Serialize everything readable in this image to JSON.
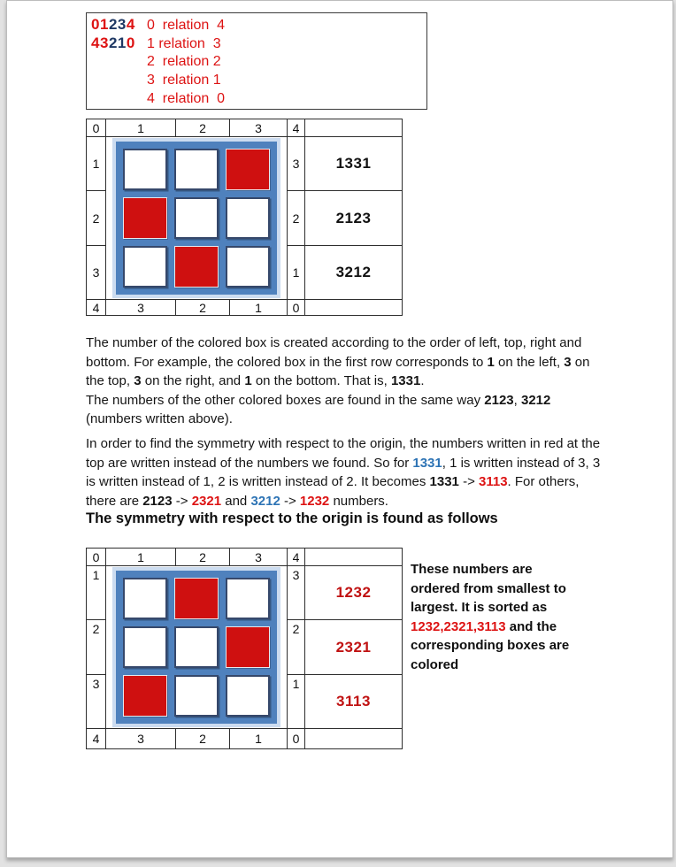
{
  "colors": {
    "red_text": "#dd1313",
    "blue_digit": "#1f3864",
    "frame_blue": "#4f81bd",
    "glow_blue": "#ccdcf0",
    "cell_border": "#36486b",
    "red_fill": "#cf1010",
    "value_red": "#c01212",
    "link_blue": "#2e74b5"
  },
  "relation_box": {
    "rows": [
      {
        "seq": [
          [
            "0",
            "r"
          ],
          [
            "1",
            "r"
          ],
          [
            "2",
            "b"
          ],
          [
            "3",
            "b"
          ],
          [
            "4",
            "r"
          ]
        ],
        "text": "0  relation  4"
      },
      {
        "seq": [
          [
            "4",
            "r"
          ],
          [
            "3",
            "r"
          ],
          [
            "2",
            "b"
          ],
          [
            "1",
            "b"
          ],
          [
            "0",
            "r"
          ]
        ],
        "text": "1 relation  3"
      },
      {
        "seq": null,
        "text": "2  relation 2"
      },
      {
        "seq": null,
        "text": "3  relation 1"
      },
      {
        "seq": null,
        "text": "4  relation  0"
      }
    ]
  },
  "table1": {
    "header": [
      "0",
      "1",
      "2",
      "3",
      "4",
      ""
    ],
    "footer": [
      "4",
      "3",
      "2",
      "1",
      "0",
      ""
    ],
    "rows": [
      {
        "left": "1",
        "right": "3",
        "value": "1331"
      },
      {
        "left": "2",
        "right": "2",
        "value": "2123"
      },
      {
        "left": "3",
        "right": "1",
        "value": "3212"
      }
    ],
    "grid_red": [
      [
        0,
        2
      ],
      [
        1,
        0
      ],
      [
        2,
        1
      ]
    ]
  },
  "table2": {
    "header": [
      "0",
      "1",
      "2",
      "3",
      "4",
      ""
    ],
    "footer": [
      "4",
      "3",
      "2",
      "1",
      "0",
      ""
    ],
    "rows": [
      {
        "left": "1",
        "right": "3",
        "value": "1232"
      },
      {
        "left": "2",
        "right": "2",
        "value": "2321"
      },
      {
        "left": "3",
        "right": "1",
        "value": "3113"
      }
    ],
    "grid_red": [
      [
        0,
        1
      ],
      [
        1,
        2
      ],
      [
        2,
        0
      ]
    ]
  },
  "paragraph1": [
    {
      "t": "The number of the colored box is created according to the order of left, top, right and bottom. For example, the colored box in the first row corresponds to ",
      "s": "n"
    },
    {
      "t": "1",
      "s": "b"
    },
    {
      "t": " on the left, ",
      "s": "n"
    },
    {
      "t": "3",
      "s": "b"
    },
    {
      "t": " on the top, ",
      "s": "n"
    },
    {
      "t": "3",
      "s": "b"
    },
    {
      "t": " on the right, and ",
      "s": "n"
    },
    {
      "t": "1",
      "s": "b"
    },
    {
      "t": " on the bottom. That is, ",
      "s": "n"
    },
    {
      "t": "1331",
      "s": "b"
    },
    {
      "t": ".\n",
      "s": "n"
    },
    {
      "t": "The numbers of the other colored boxes are found in the same way ",
      "s": "n"
    },
    {
      "t": "2123",
      "s": "b"
    },
    {
      "t": ", ",
      "s": "n"
    },
    {
      "t": "3212",
      "s": "b"
    },
    {
      "t": " (numbers written above).",
      "s": "n"
    }
  ],
  "paragraph2": [
    {
      "t": "In order to find the symmetry with respect to the origin, the numbers written in red at the top are written instead of the numbers we found. So for ",
      "s": "n"
    },
    {
      "t": "1331",
      "s": "blb"
    },
    {
      "t": ", 1 is written instead of 3, 3 is written instead of 1, 2 is written instead of 2. It becomes ",
      "s": "n"
    },
    {
      "t": "1331",
      "s": "b"
    },
    {
      "t": " -> ",
      "s": "n"
    },
    {
      "t": "3113",
      "s": "rb"
    },
    {
      "t": ". For others, there are ",
      "s": "n"
    },
    {
      "t": "2123",
      "s": "b"
    },
    {
      "t": " -> ",
      "s": "n"
    },
    {
      "t": "2321",
      "s": "rb"
    },
    {
      "t": " and ",
      "s": "n"
    },
    {
      "t": "3212",
      "s": "blb"
    },
    {
      "t": " -> ",
      "s": "n"
    },
    {
      "t": "1232",
      "s": "rb"
    },
    {
      "t": " numbers.",
      "s": "n"
    }
  ],
  "heading": "The symmetry with respect to the origin is found as follows",
  "side_note": [
    {
      "t": "These numbers are ordered from smallest to largest. It is sorted as ",
      "s": "b"
    },
    {
      "t": "1232,2321,3113",
      "s": "rb"
    },
    {
      "t": " and the corresponding boxes are colored",
      "s": "b"
    }
  ]
}
